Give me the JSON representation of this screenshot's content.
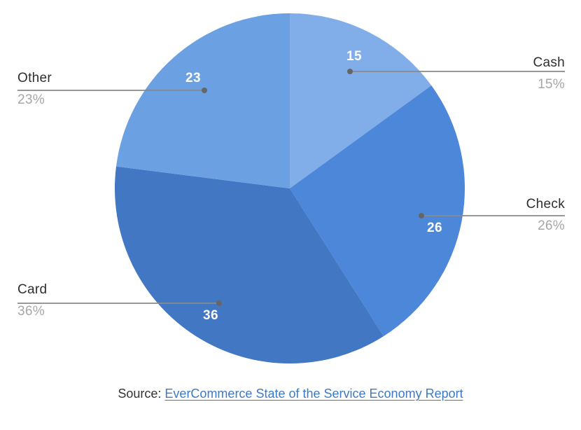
{
  "chart_data": {
    "type": "pie",
    "title": "",
    "start_angle_deg": -90,
    "direction": "clockwise",
    "legend_position": "callout-labels",
    "slices": [
      {
        "label": "Cash",
        "value": 15,
        "percent": "15%",
        "color": "#81ade8"
      },
      {
        "label": "Check",
        "value": 26,
        "percent": "26%",
        "color": "#4c87d9"
      },
      {
        "label": "Card",
        "value": 36,
        "percent": "36%",
        "color": "#4277c4"
      },
      {
        "label": "Other",
        "value": 23,
        "percent": "23%",
        "color": "#6ba1e2"
      }
    ]
  },
  "source": {
    "prefix": "Source: ",
    "link_text": "EverCommerce State of the Service Economy Report"
  },
  "colors": {
    "background": "#ffffff",
    "label_text": "#2e2e2e",
    "percent_text": "#a6a6a6",
    "value_text": "#ffffff",
    "leader_line": "#8a8a8a",
    "leader_dot": "#666666",
    "source_text": "#333333",
    "link": "#3d7ac4"
  }
}
